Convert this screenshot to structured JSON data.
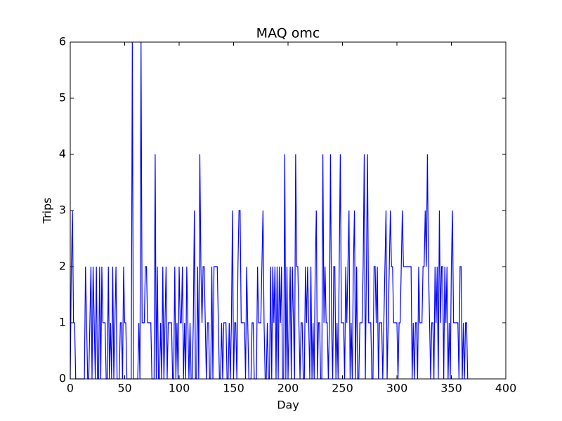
{
  "chart_data": {
    "type": "line",
    "title": "MAQ omc",
    "x_label": "Day",
    "y_label": "Trips",
    "x": [
      0,
      1,
      2,
      3,
      4,
      5,
      6,
      7,
      8,
      9,
      10,
      11,
      12,
      13,
      14,
      15,
      16,
      17,
      18,
      19,
      20,
      21,
      22,
      23,
      24,
      25,
      26,
      27,
      28,
      29,
      30,
      31,
      32,
      33,
      34,
      35,
      36,
      37,
      38,
      39,
      40,
      41,
      42,
      43,
      44,
      45,
      46,
      47,
      48,
      49,
      50,
      51,
      52,
      53,
      54,
      55,
      56,
      57,
      58,
      59,
      60,
      61,
      62,
      63,
      64,
      65,
      66,
      67,
      68,
      69,
      70,
      71,
      72,
      73,
      74,
      75,
      76,
      77,
      78,
      79,
      80,
      81,
      82,
      83,
      84,
      85,
      86,
      87,
      88,
      89,
      90,
      91,
      92,
      93,
      94,
      95,
      96,
      97,
      98,
      99,
      100,
      101,
      102,
      103,
      104,
      105,
      106,
      107,
      108,
      109,
      110,
      111,
      112,
      113,
      114,
      115,
      116,
      117,
      118,
      119,
      120,
      121,
      122,
      123,
      124,
      125,
      126,
      127,
      128,
      129,
      130,
      131,
      132,
      133,
      134,
      135,
      136,
      137,
      138,
      139,
      140,
      141,
      142,
      143,
      144,
      145,
      146,
      147,
      148,
      149,
      150,
      151,
      152,
      153,
      154,
      155,
      156,
      157,
      158,
      159,
      160,
      161,
      162,
      163,
      164,
      165,
      166,
      167,
      168,
      169,
      170,
      171,
      172,
      173,
      174,
      175,
      176,
      177,
      178,
      179,
      180,
      181,
      182,
      183,
      184,
      185,
      186,
      187,
      188,
      189,
      190,
      191,
      192,
      193,
      194,
      195,
      196,
      197,
      198,
      199,
      200,
      201,
      202,
      203,
      204,
      205,
      206,
      207,
      208,
      209,
      210,
      211,
      212,
      213,
      214,
      215,
      216,
      217,
      218,
      219,
      220,
      221,
      222,
      223,
      224,
      225,
      226,
      227,
      228,
      229,
      230,
      231,
      232,
      233,
      234,
      235,
      236,
      237,
      238,
      239,
      240,
      241,
      242,
      243,
      244,
      245,
      246,
      247,
      248,
      249,
      250,
      251,
      252,
      253,
      254,
      255,
      256,
      257,
      258,
      259,
      260,
      261,
      262,
      263,
      264,
      265,
      266,
      267,
      268,
      269,
      270,
      271,
      272,
      273,
      274,
      275,
      276,
      277,
      278,
      279,
      280,
      281,
      282,
      283,
      284,
      285,
      286,
      287,
      288,
      289,
      290,
      291,
      292,
      293,
      294,
      295,
      296,
      297,
      298,
      299,
      300,
      301,
      302,
      303,
      304,
      305,
      306,
      307,
      308,
      309,
      310,
      311,
      312,
      313,
      314,
      315,
      316,
      317,
      318,
      319,
      320,
      321,
      322,
      323,
      324,
      325,
      326,
      327,
      328,
      329,
      330,
      331,
      332,
      333,
      334,
      335,
      336,
      337,
      338,
      339,
      340,
      341,
      342,
      343,
      344,
      345,
      346,
      347,
      348,
      349,
      350,
      351,
      352,
      353,
      354,
      355,
      356,
      357,
      358,
      359,
      360,
      361,
      362,
      363,
      364,
      365
    ],
    "series": [
      {
        "color": "#0000ff",
        "values": [
          0,
          2,
          3,
          1,
          1,
          0,
          0,
          0,
          0,
          0,
          0,
          0,
          0,
          0,
          2,
          1,
          0,
          0,
          1,
          2,
          0,
          2,
          1,
          0,
          2,
          0,
          0,
          2,
          0,
          2,
          1,
          1,
          1,
          0,
          0,
          2,
          0,
          1,
          0,
          2,
          0,
          1,
          2,
          0,
          0,
          0,
          1,
          1,
          0,
          2,
          1,
          1,
          0,
          0,
          0,
          0,
          0,
          6,
          0,
          0,
          0,
          0,
          0,
          1,
          0,
          6,
          1,
          1,
          1,
          2,
          2,
          1,
          1,
          1,
          1,
          0,
          0,
          0,
          4,
          0,
          2,
          0,
          0,
          1,
          0,
          2,
          0,
          1,
          2,
          0,
          1,
          1,
          1,
          1,
          0,
          0,
          2,
          0,
          1,
          0,
          2,
          1,
          1,
          2,
          0,
          1,
          0,
          2,
          1,
          0,
          1,
          0,
          0,
          1,
          3,
          0,
          0,
          2,
          0,
          4,
          2,
          1,
          2,
          2,
          1,
          0,
          1,
          1,
          0,
          0,
          2,
          0,
          2,
          2,
          2,
          2,
          1,
          0,
          0,
          1,
          0,
          1,
          1,
          1,
          0,
          0,
          1,
          0,
          1,
          3,
          0,
          1,
          1,
          0,
          2,
          3,
          3,
          1,
          1,
          1,
          1,
          0,
          2,
          1,
          0,
          0,
          0,
          1,
          1,
          0,
          0,
          0,
          2,
          1,
          1,
          1,
          2,
          3,
          1,
          0,
          0,
          1,
          0,
          0,
          2,
          0,
          2,
          1,
          2,
          0,
          2,
          0,
          2,
          1,
          2,
          0,
          0,
          4,
          0,
          2,
          0,
          1,
          2,
          0,
          2,
          1,
          0,
          4,
          2,
          2,
          1,
          0,
          1,
          1,
          0,
          0,
          2,
          1,
          2,
          1,
          0,
          2,
          0,
          1,
          0,
          2,
          3,
          0,
          1,
          1,
          0,
          0,
          4,
          1,
          2,
          1,
          1,
          0,
          1,
          4,
          1,
          0,
          2,
          2,
          0,
          1,
          0,
          2,
          4,
          1,
          1,
          1,
          0,
          2,
          1,
          2,
          3,
          0,
          1,
          0,
          2,
          3,
          0,
          2,
          0,
          0,
          1,
          1,
          1,
          2,
          4,
          0,
          2,
          4,
          1,
          1,
          1,
          0,
          0,
          2,
          2,
          1,
          2,
          0,
          1,
          1,
          1,
          0,
          1,
          2,
          3,
          0,
          1,
          2,
          3,
          2,
          2,
          1,
          1,
          1,
          1,
          0,
          1,
          1,
          2,
          3,
          2,
          2,
          2,
          2,
          2,
          2,
          2,
          2,
          0,
          1,
          0,
          1,
          1,
          0,
          2,
          1,
          1,
          1,
          2,
          2,
          3,
          2,
          4,
          2,
          1,
          0,
          1,
          1,
          0,
          2,
          1,
          2,
          0,
          3,
          1,
          2,
          2,
          0,
          2,
          1,
          2,
          0,
          1,
          0,
          2,
          3,
          1,
          1,
          1,
          1,
          1,
          0,
          2,
          2,
          0,
          1,
          0,
          1,
          1,
          0
        ]
      }
    ],
    "xlim": [
      0,
      400
    ],
    "xticks": [
      0,
      50,
      100,
      150,
      200,
      250,
      300,
      350,
      400
    ],
    "ylim": [
      0,
      6
    ],
    "yticks": [
      0,
      1,
      2,
      3,
      4,
      5,
      6
    ],
    "grid": false
  }
}
